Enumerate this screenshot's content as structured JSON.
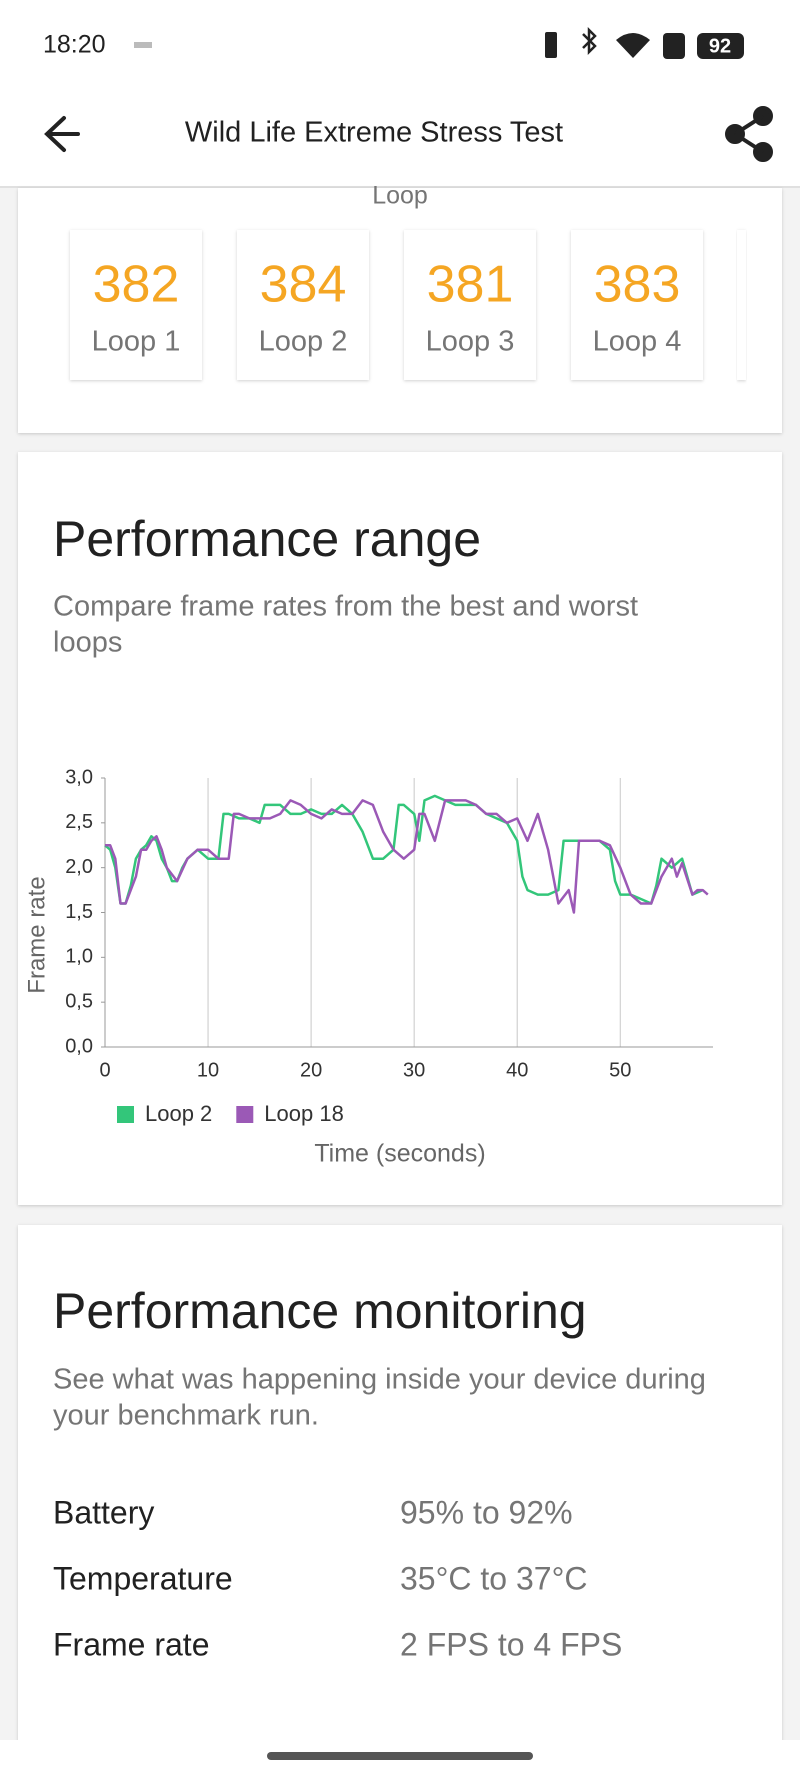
{
  "status_bar": {
    "time": "18:20",
    "battery": "92"
  },
  "app_bar": {
    "title": "Wild Life Extreme Stress Test"
  },
  "loops": {
    "label": "Loop",
    "items": [
      {
        "score": 382,
        "label": "Loop 1"
      },
      {
        "score": 384,
        "label": "Loop 2"
      },
      {
        "score": 381,
        "label": "Loop 3"
      },
      {
        "score": 383,
        "label": "Loop 4"
      }
    ]
  },
  "performance_range": {
    "title": "Performance range",
    "subtitle_lines": [
      "Compare frame rates from the best and worst",
      "loops"
    ]
  },
  "chart_data": {
    "type": "line",
    "xlabel": "Time (seconds)",
    "ylabel": "Frame rate",
    "xlim": [
      0,
      59
    ],
    "xticks": [
      0,
      10,
      20,
      30,
      40,
      50
    ],
    "ylim": [
      0,
      3
    ],
    "yticks": [
      {
        "value": 0,
        "label": "0,0"
      },
      {
        "value": 0.5,
        "label": "0,5"
      },
      {
        "value": 1,
        "label": "1,0"
      },
      {
        "value": 1.5,
        "label": "1,5"
      },
      {
        "value": 2,
        "label": "2,0"
      },
      {
        "value": 2.5,
        "label": "2,5"
      },
      {
        "value": 3,
        "label": "3,0"
      }
    ],
    "grid": "x",
    "series": [
      {
        "name": "Loop 2",
        "color": "#33c67a",
        "x": [
          0,
          0.5,
          1,
          1.5,
          2,
          2.5,
          3,
          3.5,
          4,
          4.5,
          5,
          5.5,
          6,
          6.5,
          7,
          7.5,
          8,
          9,
          10,
          11,
          11.5,
          12,
          13,
          14,
          15,
          15.5,
          16,
          17,
          18,
          19,
          20,
          21,
          22,
          23,
          24,
          25,
          26,
          27,
          28,
          28.5,
          29,
          30,
          30.5,
          31,
          32,
          33,
          34,
          35,
          36,
          37,
          38,
          39,
          40,
          40.5,
          41,
          42,
          43,
          44,
          44.5,
          45,
          46,
          47,
          48,
          49,
          49.5,
          50,
          51,
          52,
          53,
          53.5,
          54,
          55,
          56,
          57,
          58
        ],
        "values": [
          2.25,
          2.2,
          2.0,
          1.6,
          1.6,
          1.8,
          2.1,
          2.2,
          2.25,
          2.35,
          2.3,
          2.1,
          2.0,
          1.85,
          1.85,
          2.0,
          2.1,
          2.2,
          2.1,
          2.1,
          2.6,
          2.6,
          2.55,
          2.55,
          2.5,
          2.7,
          2.7,
          2.7,
          2.6,
          2.6,
          2.65,
          2.6,
          2.6,
          2.7,
          2.6,
          2.4,
          2.1,
          2.1,
          2.2,
          2.7,
          2.7,
          2.6,
          2.3,
          2.75,
          2.8,
          2.75,
          2.7,
          2.7,
          2.7,
          2.6,
          2.55,
          2.5,
          2.3,
          1.9,
          1.75,
          1.7,
          1.7,
          1.75,
          2.3,
          2.3,
          2.3,
          2.3,
          2.3,
          2.2,
          1.85,
          1.7,
          1.7,
          1.65,
          1.6,
          1.8,
          2.1,
          2.0,
          2.1,
          1.7,
          1.75
        ]
      },
      {
        "name": "Loop 18",
        "color": "#9b59b6",
        "x": [
          0,
          0.5,
          1,
          1.5,
          2,
          3,
          3.5,
          4,
          4.5,
          5,
          5.5,
          6,
          7,
          8,
          9,
          10,
          11,
          12,
          12.5,
          13,
          14,
          15,
          16,
          17,
          18,
          19,
          20,
          21,
          22,
          23,
          24,
          25,
          26,
          27,
          28,
          29,
          30,
          30.5,
          31,
          32,
          33,
          34,
          35,
          36,
          37,
          38,
          39,
          40,
          41,
          42,
          43,
          44,
          45,
          45.5,
          46,
          47,
          48,
          49,
          50,
          51,
          52,
          53,
          54,
          55,
          55.5,
          56,
          57,
          57.5,
          58,
          58.5
        ],
        "values": [
          2.25,
          2.25,
          2.1,
          1.6,
          1.6,
          1.9,
          2.2,
          2.2,
          2.3,
          2.35,
          2.2,
          2.0,
          1.85,
          2.1,
          2.2,
          2.2,
          2.1,
          2.1,
          2.6,
          2.6,
          2.55,
          2.55,
          2.55,
          2.6,
          2.75,
          2.7,
          2.6,
          2.55,
          2.65,
          2.6,
          2.6,
          2.75,
          2.7,
          2.4,
          2.2,
          2.1,
          2.2,
          2.6,
          2.6,
          2.3,
          2.75,
          2.75,
          2.75,
          2.7,
          2.6,
          2.6,
          2.5,
          2.55,
          2.3,
          2.6,
          2.2,
          1.6,
          1.75,
          1.5,
          2.3,
          2.3,
          2.3,
          2.25,
          2.0,
          1.7,
          1.6,
          1.6,
          1.9,
          2.1,
          1.9,
          2.05,
          1.7,
          1.75,
          1.75,
          1.7
        ]
      }
    ]
  },
  "performance_monitoring": {
    "title": "Performance monitoring",
    "subtitle_lines": [
      "See what was happening inside your device during",
      "your benchmark run."
    ],
    "rows": [
      [
        "Battery",
        "95% to 92%"
      ],
      [
        "Temperature",
        "35°C to 37°C"
      ],
      [
        "Frame rate",
        "2 FPS to 4 FPS"
      ]
    ]
  }
}
